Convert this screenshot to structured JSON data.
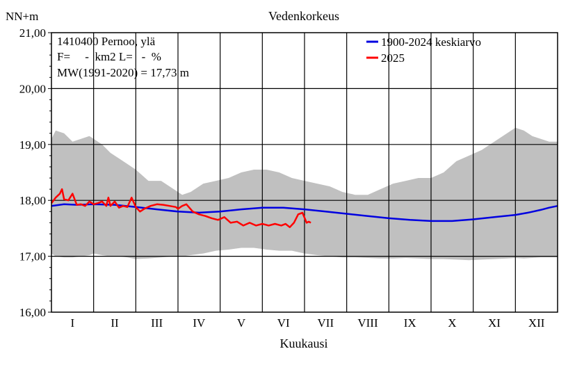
{
  "chart_data": {
    "type": "line",
    "title": "Vedenkorkeus",
    "ylabel": "NN+m",
    "xlabel": "Kuukausi",
    "ylim": [
      16.0,
      21.0
    ],
    "yticks": [
      "16,00",
      "17,00",
      "18,00",
      "19,00",
      "20,00",
      "21,00"
    ],
    "categories": [
      "I",
      "II",
      "III",
      "IV",
      "V",
      "VI",
      "VII",
      "VIII",
      "IX",
      "X",
      "XI",
      "XII"
    ],
    "grid": true,
    "legend_position": "top-right",
    "info": {
      "station": "1410400 Pernoo, ylä",
      "area": "F=     -  km2 L=   -  %",
      "mw": "MW(1991-2020) = 17,73 m"
    },
    "band": {
      "name": "min-max range",
      "color": "#c0c0c0",
      "x": [
        0,
        0.1,
        0.3,
        0.5,
        0.7,
        0.9,
        1.0,
        1.2,
        1.4,
        1.6,
        1.8,
        2.0,
        2.3,
        2.6,
        2.9,
        3.1,
        3.3,
        3.6,
        3.9,
        4.2,
        4.5,
        4.8,
        5.1,
        5.4,
        5.7,
        6.0,
        6.3,
        6.6,
        6.9,
        7.2,
        7.5,
        7.8,
        8.1,
        8.4,
        8.7,
        9.0,
        9.3,
        9.6,
        9.9,
        10.2,
        10.5,
        10.8,
        11.0,
        11.2,
        11.4,
        11.6,
        11.8,
        12.0
      ],
      "upper": [
        19.1,
        19.25,
        19.2,
        19.05,
        19.1,
        19.15,
        19.1,
        19.0,
        18.85,
        18.75,
        18.65,
        18.55,
        18.35,
        18.35,
        18.2,
        18.1,
        18.15,
        18.3,
        18.35,
        18.4,
        18.5,
        18.55,
        18.55,
        18.5,
        18.4,
        18.35,
        18.3,
        18.25,
        18.15,
        18.1,
        18.1,
        18.2,
        18.3,
        18.35,
        18.4,
        18.4,
        18.5,
        18.7,
        18.8,
        18.9,
        19.05,
        19.2,
        19.3,
        19.25,
        19.15,
        19.1,
        19.05,
        19.05
      ],
      "lower": [
        17.05,
        17.0,
        16.98,
        16.98,
        17.0,
        17.02,
        17.05,
        17.02,
        17.0,
        17.0,
        16.98,
        16.95,
        16.96,
        16.98,
        17.0,
        17.0,
        17.02,
        17.05,
        17.1,
        17.12,
        17.15,
        17.15,
        17.12,
        17.1,
        17.1,
        17.05,
        17.02,
        17.0,
        16.98,
        16.98,
        16.97,
        16.96,
        16.96,
        16.97,
        16.96,
        16.95,
        16.95,
        16.94,
        16.93,
        16.94,
        16.95,
        16.96,
        16.97,
        16.96,
        16.97,
        16.98,
        16.98,
        16.98
      ]
    },
    "series": [
      {
        "name": "1900-2024 keskiarvo",
        "color": "#0000e0",
        "x": [
          0,
          0.3,
          0.6,
          1.0,
          1.5,
          2.0,
          2.5,
          3.0,
          3.5,
          4.0,
          4.5,
          5.0,
          5.5,
          6.0,
          6.5,
          7.0,
          7.5,
          8.0,
          8.5,
          9.0,
          9.5,
          10.0,
          10.5,
          11.0,
          11.3,
          11.6,
          11.8,
          12.0
        ],
        "values": [
          17.9,
          17.93,
          17.92,
          17.93,
          17.92,
          17.88,
          17.84,
          17.8,
          17.78,
          17.8,
          17.84,
          17.87,
          17.87,
          17.84,
          17.8,
          17.76,
          17.72,
          17.68,
          17.65,
          17.63,
          17.63,
          17.66,
          17.7,
          17.74,
          17.78,
          17.83,
          17.87,
          17.9
        ]
      },
      {
        "name": "2025",
        "color": "#ff0000",
        "x": [
          0,
          0.1,
          0.2,
          0.25,
          0.3,
          0.4,
          0.5,
          0.6,
          0.7,
          0.8,
          0.9,
          1.0,
          1.1,
          1.2,
          1.3,
          1.35,
          1.4,
          1.5,
          1.6,
          1.7,
          1.8,
          1.9,
          2.0,
          2.1,
          2.2,
          2.35,
          2.5,
          2.65,
          2.8,
          2.95,
          3.0,
          3.1,
          3.2,
          3.35,
          3.5,
          3.65,
          3.8,
          3.95,
          4.1,
          4.25,
          4.4,
          4.55,
          4.7,
          4.85,
          5.0,
          5.15,
          5.3,
          5.45,
          5.55,
          5.65,
          5.75,
          5.85,
          5.95,
          6.05,
          6.1,
          6.15
        ],
        "values": [
          17.95,
          18.05,
          18.12,
          18.2,
          18.02,
          18.0,
          18.12,
          17.92,
          17.93,
          17.9,
          17.98,
          17.93,
          17.95,
          17.98,
          17.9,
          18.05,
          17.9,
          17.98,
          17.87,
          17.9,
          17.88,
          18.05,
          17.88,
          17.8,
          17.85,
          17.9,
          17.93,
          17.92,
          17.9,
          17.88,
          17.85,
          17.9,
          17.93,
          17.8,
          17.75,
          17.72,
          17.68,
          17.65,
          17.7,
          17.6,
          17.62,
          17.55,
          17.6,
          17.55,
          17.58,
          17.55,
          17.58,
          17.55,
          17.58,
          17.52,
          17.6,
          17.75,
          17.78,
          17.6,
          17.62,
          17.6
        ]
      }
    ]
  }
}
